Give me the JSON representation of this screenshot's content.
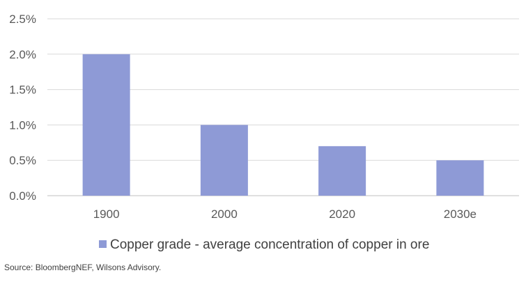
{
  "chart_data": {
    "type": "bar",
    "categories": [
      "1900",
      "2000",
      "2020",
      "2030e"
    ],
    "series": [
      {
        "name": "Copper grade - average concentration of copper in ore",
        "values": [
          2.0,
          1.0,
          0.7,
          0.5
        ],
        "color": "#8e9ad6"
      }
    ],
    "ylim": [
      0,
      2.5
    ],
    "yticks": [
      "0.0%",
      "0.5%",
      "1.0%",
      "1.5%",
      "2.0%",
      "2.5%"
    ],
    "ytick_values": [
      0,
      0.5,
      1.0,
      1.5,
      2.0,
      2.5
    ],
    "grid": true,
    "legend_position": "bottom",
    "gridline_color": "#d9d9d9",
    "axis_color": "#bfbfbf"
  },
  "source": "Source: BloombergNEF, Wilsons Advisory."
}
